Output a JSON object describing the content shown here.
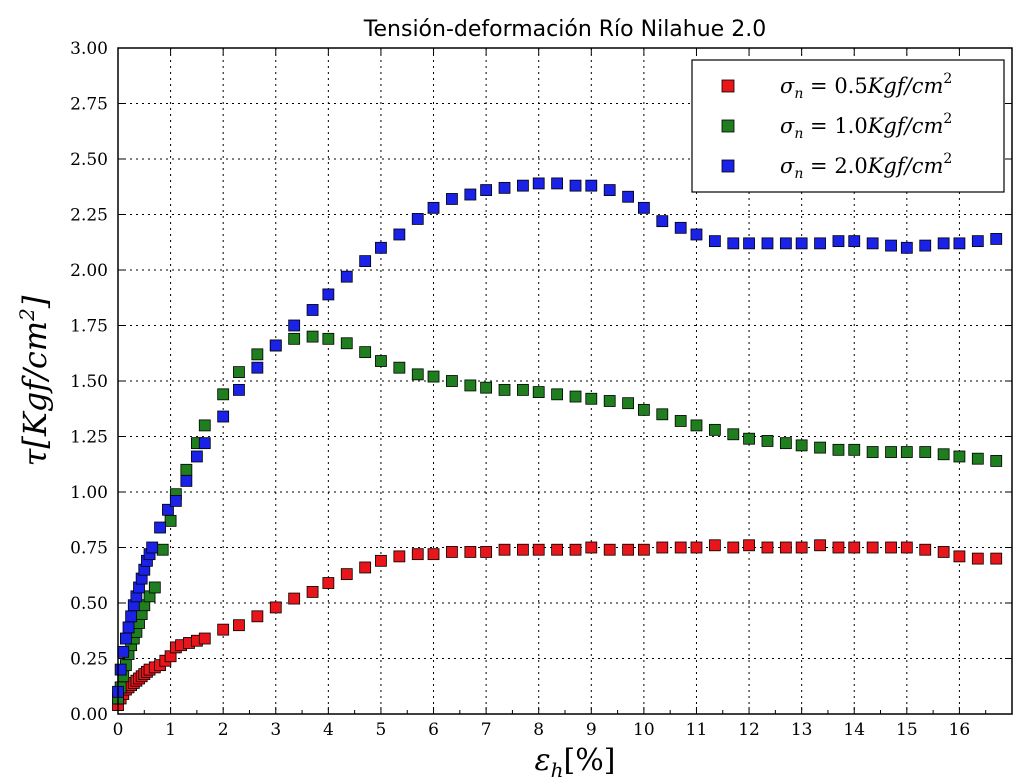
{
  "chart_data": {
    "type": "scatter",
    "title": "Tensión-deformación Río Nilahue 2.0",
    "xlabel": "ε_h[%]",
    "ylabel": "τ[Kgf/cm²]",
    "xlim": [
      0,
      17
    ],
    "ylim": [
      0,
      3
    ],
    "x_ticks": [
      "0",
      "1",
      "2",
      "3",
      "4",
      "5",
      "6",
      "7",
      "8",
      "9",
      "10",
      "11",
      "12",
      "13",
      "14",
      "15",
      "16"
    ],
    "y_ticks": [
      "0.00",
      "0.25",
      "0.50",
      "0.75",
      "1.00",
      "1.25",
      "1.50",
      "1.75",
      "2.00",
      "2.25",
      "2.50",
      "2.75",
      "3.00"
    ],
    "grid": true,
    "legend_position": "top-right",
    "series": [
      {
        "name": "σ_n = 0.5Kgf/cm²",
        "label_parts": {
          "sym": "σ",
          "sub": "n",
          "rest": " = 0.5",
          "unit": "Kgf/cm",
          "sup": "2"
        },
        "color": "#e8161a",
        "x": [
          0.0,
          0.05,
          0.1,
          0.15,
          0.2,
          0.25,
          0.3,
          0.35,
          0.4,
          0.45,
          0.5,
          0.55,
          0.6,
          0.7,
          0.8,
          0.9,
          1.0,
          1.1,
          1.2,
          1.35,
          1.5,
          1.65,
          2.0,
          2.3,
          2.65,
          3.0,
          3.35,
          3.7,
          4.0,
          4.35,
          4.7,
          5.0,
          5.35,
          5.7,
          6.0,
          6.35,
          6.7,
          7.0,
          7.35,
          7.7,
          8.0,
          8.35,
          8.7,
          9.0,
          9.35,
          9.7,
          10.0,
          10.35,
          10.7,
          11.0,
          11.35,
          11.7,
          12.0,
          12.35,
          12.7,
          13.0,
          13.35,
          13.7,
          14.0,
          14.35,
          14.7,
          15.0,
          15.35,
          15.7,
          16.0,
          16.35,
          16.7
        ],
        "y": [
          0.04,
          0.07,
          0.09,
          0.11,
          0.12,
          0.13,
          0.14,
          0.15,
          0.16,
          0.17,
          0.18,
          0.19,
          0.2,
          0.21,
          0.22,
          0.24,
          0.26,
          0.3,
          0.31,
          0.32,
          0.33,
          0.34,
          0.38,
          0.4,
          0.44,
          0.48,
          0.52,
          0.55,
          0.59,
          0.63,
          0.66,
          0.69,
          0.71,
          0.72,
          0.72,
          0.73,
          0.73,
          0.73,
          0.74,
          0.74,
          0.74,
          0.74,
          0.74,
          0.75,
          0.74,
          0.74,
          0.74,
          0.75,
          0.75,
          0.75,
          0.76,
          0.75,
          0.76,
          0.75,
          0.75,
          0.75,
          0.76,
          0.75,
          0.75,
          0.75,
          0.75,
          0.75,
          0.74,
          0.73,
          0.71,
          0.7,
          0.7
        ]
      },
      {
        "name": "σ_n = 1.0Kgf/cm²",
        "label_parts": {
          "sym": "σ",
          "sub": "n",
          "rest": " = 1.0",
          "unit": "Kgf/cm",
          "sup": "2"
        },
        "color": "#1f7f1f",
        "x": [
          0.0,
          0.05,
          0.1,
          0.15,
          0.2,
          0.25,
          0.3,
          0.35,
          0.4,
          0.45,
          0.5,
          0.6,
          0.7,
          0.85,
          1.0,
          1.1,
          1.3,
          1.5,
          1.65,
          2.0,
          2.3,
          2.65,
          3.0,
          3.35,
          3.7,
          4.0,
          4.35,
          4.7,
          5.0,
          5.35,
          5.7,
          6.0,
          6.35,
          6.7,
          7.0,
          7.35,
          7.7,
          8.0,
          8.35,
          8.7,
          9.0,
          9.35,
          9.7,
          10.0,
          10.35,
          10.7,
          11.0,
          11.35,
          11.7,
          12.0,
          12.35,
          12.7,
          13.0,
          13.35,
          13.7,
          14.0,
          14.35,
          14.7,
          15.0,
          15.35,
          15.7,
          16.0,
          16.35,
          16.7
        ],
        "y": [
          0.07,
          0.12,
          0.17,
          0.22,
          0.27,
          0.31,
          0.34,
          0.37,
          0.41,
          0.45,
          0.49,
          0.53,
          0.57,
          0.74,
          0.87,
          0.99,
          1.1,
          1.22,
          1.3,
          1.44,
          1.54,
          1.62,
          1.66,
          1.69,
          1.7,
          1.69,
          1.67,
          1.63,
          1.59,
          1.56,
          1.53,
          1.52,
          1.5,
          1.48,
          1.47,
          1.46,
          1.46,
          1.45,
          1.44,
          1.43,
          1.42,
          1.41,
          1.4,
          1.37,
          1.35,
          1.32,
          1.3,
          1.28,
          1.26,
          1.24,
          1.23,
          1.22,
          1.21,
          1.2,
          1.19,
          1.19,
          1.18,
          1.18,
          1.18,
          1.18,
          1.17,
          1.16,
          1.15,
          1.14
        ]
      },
      {
        "name": "σ_n = 2.0Kgf/cm²",
        "label_parts": {
          "sym": "σ",
          "sub": "n",
          "rest": " = 2.0",
          "unit": "Kgf/cm",
          "sup": "2"
        },
        "color": "#1a22e8",
        "x": [
          0.0,
          0.05,
          0.1,
          0.15,
          0.2,
          0.25,
          0.3,
          0.35,
          0.4,
          0.45,
          0.5,
          0.55,
          0.6,
          0.65,
          0.8,
          0.95,
          1.1,
          1.3,
          1.5,
          1.65,
          2.0,
          2.3,
          2.65,
          3.0,
          3.35,
          3.7,
          4.0,
          4.35,
          4.7,
          5.0,
          5.35,
          5.7,
          6.0,
          6.35,
          6.7,
          7.0,
          7.35,
          7.7,
          8.0,
          8.35,
          8.7,
          9.0,
          9.35,
          9.7,
          10.0,
          10.35,
          10.7,
          11.0,
          11.35,
          11.7,
          12.0,
          12.35,
          12.7,
          13.0,
          13.35,
          13.7,
          14.0,
          14.35,
          14.7,
          15.0,
          15.35,
          15.7,
          16.0,
          16.35,
          16.7
        ],
        "y": [
          0.1,
          0.2,
          0.28,
          0.34,
          0.39,
          0.44,
          0.49,
          0.53,
          0.57,
          0.61,
          0.65,
          0.69,
          0.72,
          0.75,
          0.84,
          0.92,
          0.96,
          1.05,
          1.16,
          1.22,
          1.34,
          1.46,
          1.56,
          1.66,
          1.75,
          1.82,
          1.89,
          1.97,
          2.04,
          2.1,
          2.16,
          2.23,
          2.28,
          2.32,
          2.34,
          2.36,
          2.37,
          2.38,
          2.39,
          2.39,
          2.38,
          2.38,
          2.36,
          2.33,
          2.28,
          2.22,
          2.19,
          2.16,
          2.13,
          2.12,
          2.12,
          2.12,
          2.12,
          2.12,
          2.12,
          2.13,
          2.13,
          2.12,
          2.11,
          2.1,
          2.11,
          2.12,
          2.12,
          2.13,
          2.14
        ]
      }
    ]
  }
}
